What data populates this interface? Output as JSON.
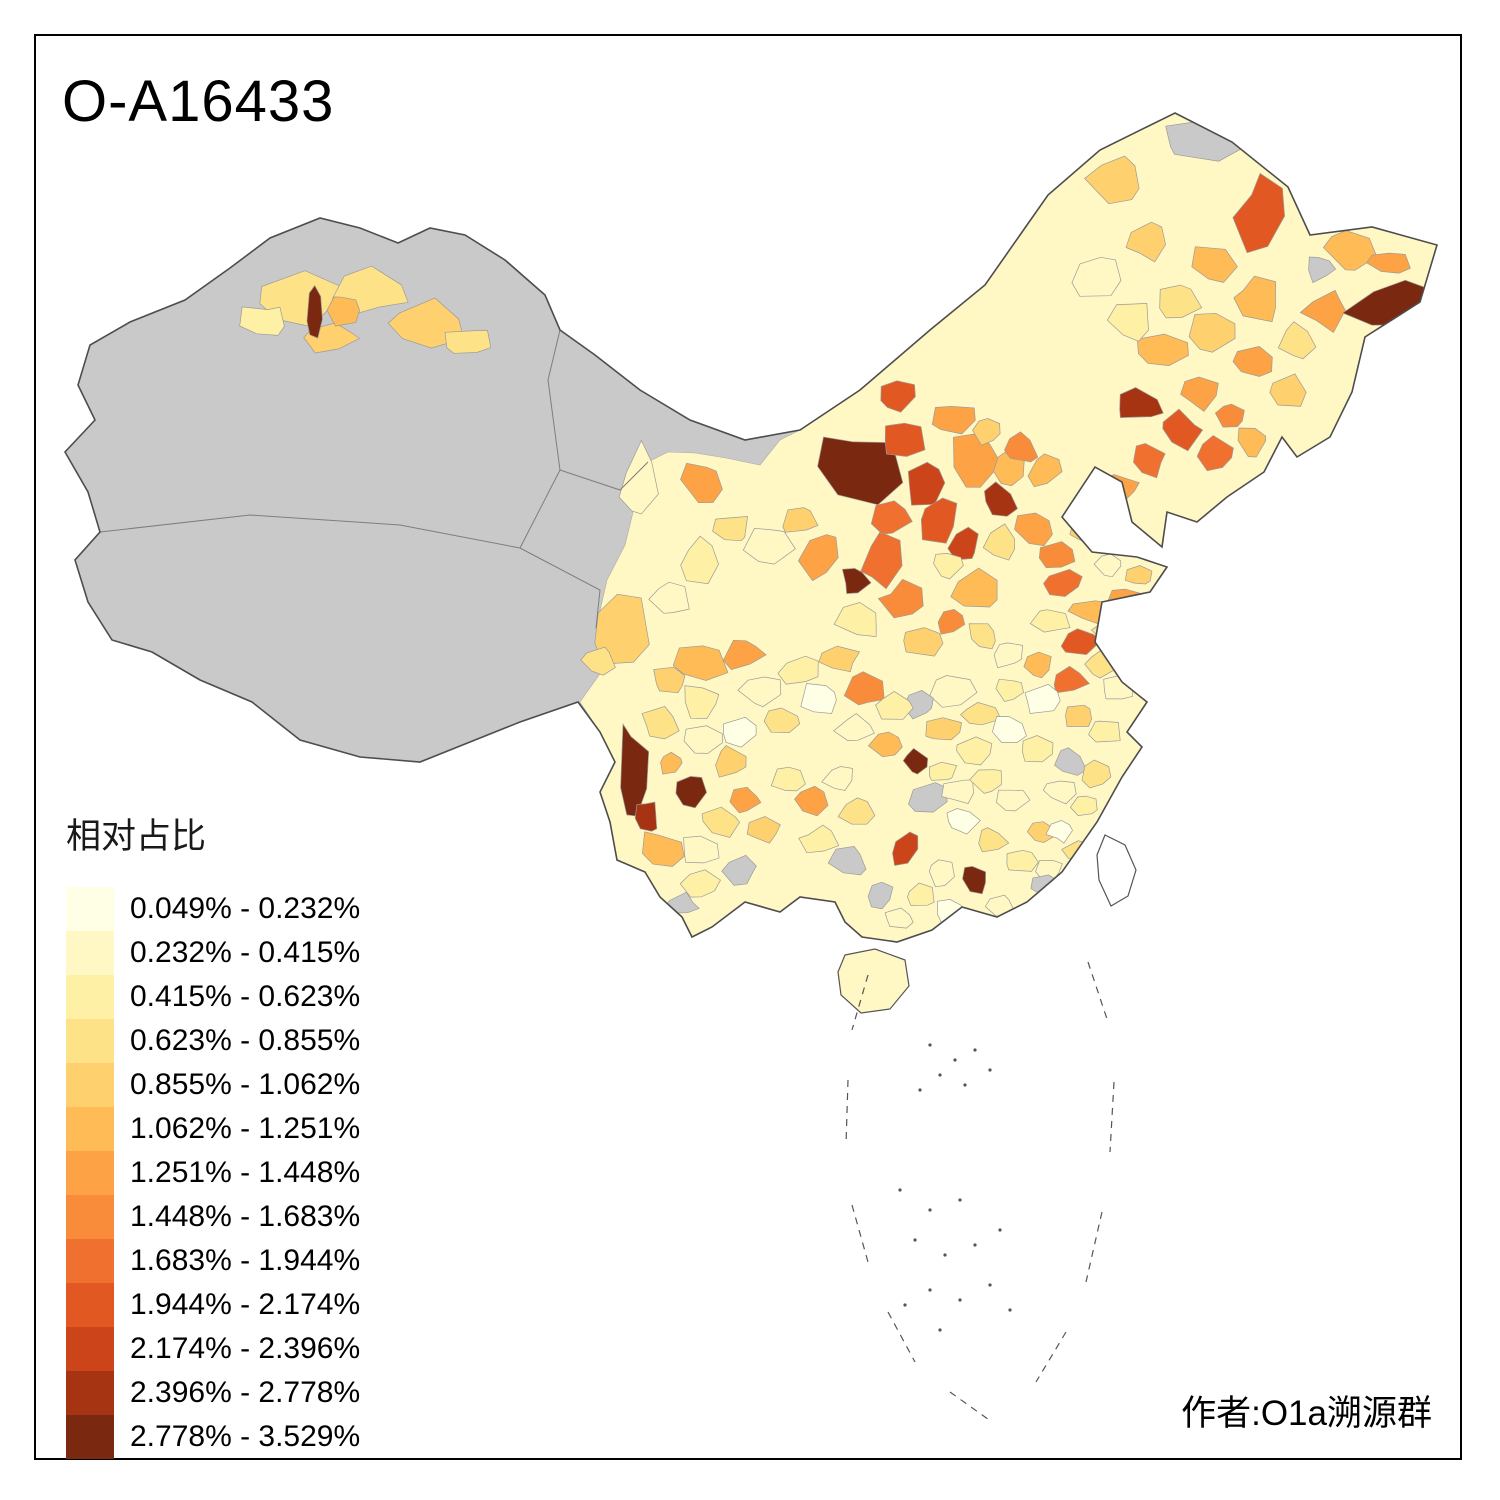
{
  "title": "O-A16433",
  "attribution": "作者:O1a溯源群",
  "legend": {
    "title": "相对占比",
    "classes": [
      {
        "label": "0.049% - 0.232%",
        "color": "#FFFFE5"
      },
      {
        "label": "0.232% - 0.415%",
        "color": "#FFF8C4"
      },
      {
        "label": "0.415% - 0.623%",
        "color": "#FEF0A5"
      },
      {
        "label": "0.623% - 0.855%",
        "color": "#FEE287"
      },
      {
        "label": "0.855% - 1.062%",
        "color": "#FED16E"
      },
      {
        "label": "1.062% - 1.251%",
        "color": "#FEBB56"
      },
      {
        "label": "1.251% - 1.448%",
        "color": "#FDA346"
      },
      {
        "label": "1.448% - 1.683%",
        "color": "#F98C3B"
      },
      {
        "label": "1.683% - 1.944%",
        "color": "#F0702F"
      },
      {
        "label": "1.944% - 2.174%",
        "color": "#E25822"
      },
      {
        "label": "2.174% - 2.396%",
        "color": "#CB441A"
      },
      {
        "label": "2.396% - 2.778%",
        "color": "#A63312"
      },
      {
        "label": "2.778% - 3.529%",
        "color": "#7B2810"
      }
    ]
  },
  "map": {
    "no_data_color": "#C9C9C9",
    "border_color": "#4D4D4D",
    "frame_color": "#000000",
    "background": "#FFFFFF"
  }
}
